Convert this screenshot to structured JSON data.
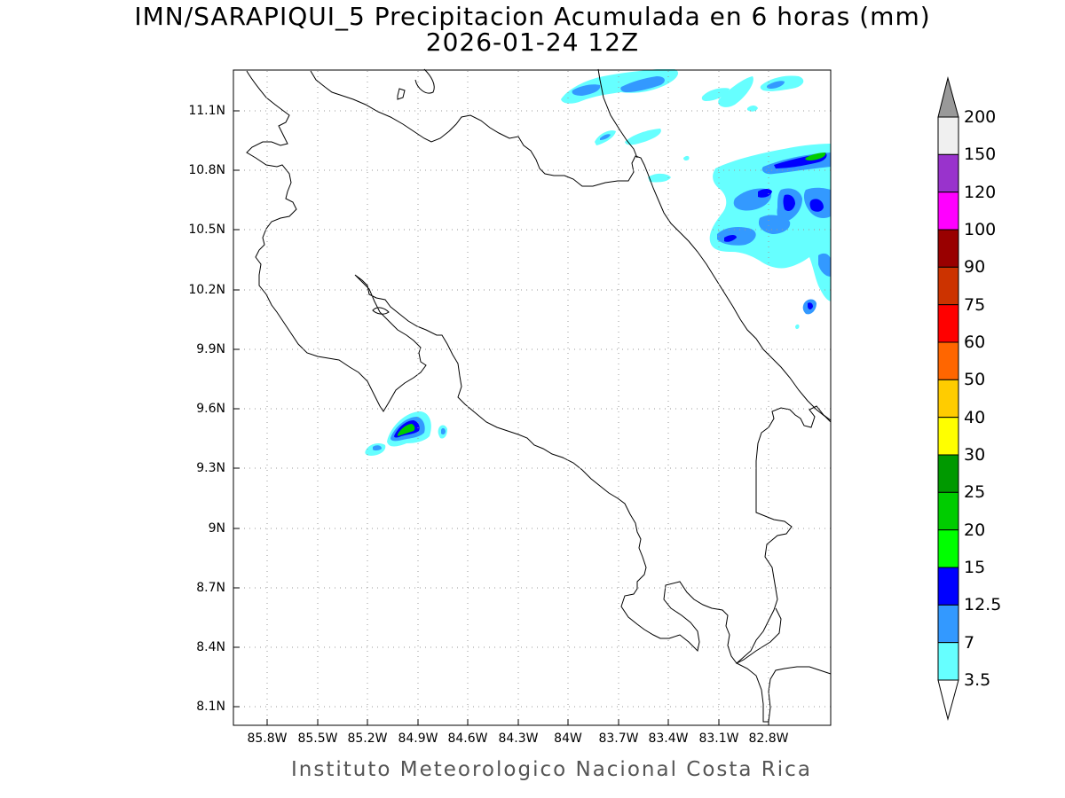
{
  "title": {
    "line1": "IMN/SARAPIQUI_5 Precipitacion Acumulada en 6 horas (mm)",
    "line2": "2026-01-24 12Z"
  },
  "credit": "Instituto Meteorologico Nacional Costa Rica",
  "map": {
    "lat_ticks": [
      "11.1N",
      "10.8N",
      "10.5N",
      "10.2N",
      "9.9N",
      "9.6N",
      "9.3N",
      "9N",
      "8.7N",
      "8.4N",
      "8.1N"
    ],
    "lon_ticks": [
      "85.8W",
      "85.5W",
      "85.2W",
      "84.9W",
      "84.6W",
      "84.3W",
      "84W",
      "83.7W",
      "83.4W",
      "83.1W",
      "82.8W"
    ],
    "grid": "dotted"
  },
  "colorbar": {
    "labels": [
      "200",
      "150",
      "120",
      "100",
      "90",
      "75",
      "60",
      "50",
      "40",
      "30",
      "25",
      "20",
      "15",
      "12.5",
      "7",
      "3.5"
    ],
    "colors": [
      "#f0f0f0",
      "#9933cc",
      "#ff00ff",
      "#990000",
      "#cc3300",
      "#ff0000",
      "#ff6600",
      "#ffcc00",
      "#ffff00",
      "#009900",
      "#00cc00",
      "#00ff00",
      "#0000ff",
      "#3399ff",
      "#66ffff"
    ],
    "top_arrow_color": "#999999",
    "bottom_arrow_color": "#ffffff"
  },
  "precip_colors": {
    "light": "#66ffff",
    "moderate": "#3399ff",
    "heavy": "#0000ff",
    "very_heavy": "#00cc00",
    "extreme": "#009900"
  }
}
